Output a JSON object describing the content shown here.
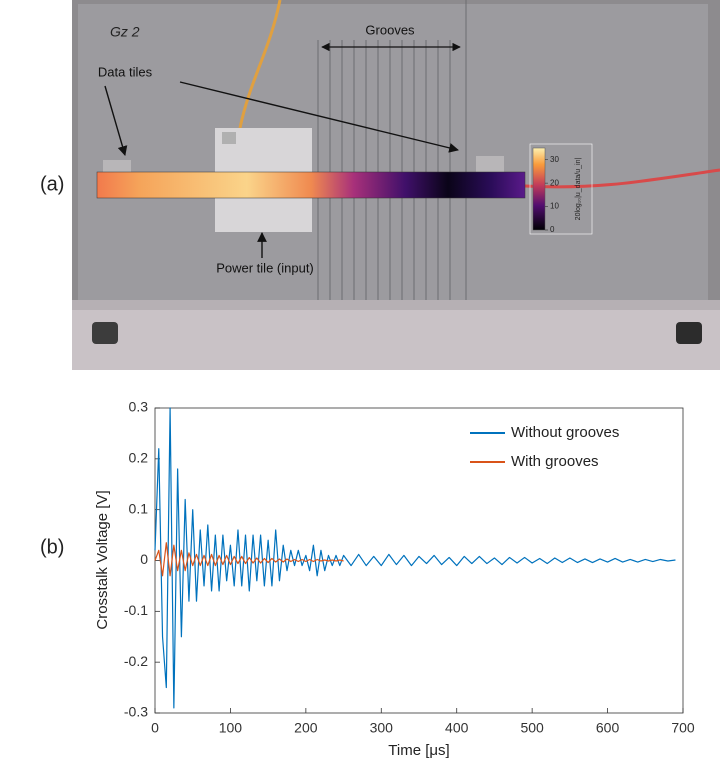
{
  "panel_a": {
    "label": "(a)",
    "plate_mark": "Gz 2",
    "grooves": "Grooves",
    "data_tiles": "Data tiles",
    "power_tile": "Power tile (input)",
    "colorbar": {
      "label": "20log₁₀|u_data/u_in|",
      "lim": [
        0,
        35
      ],
      "ticks": [
        0,
        10,
        20,
        30
      ]
    }
  },
  "chart_data": {
    "type": "line",
    "panel_label": "(b)",
    "xlabel": "Time [μs]",
    "ylabel": "Crosstalk Voltage [V]",
    "xlim": [
      0,
      700
    ],
    "xticks": [
      0,
      100,
      200,
      300,
      400,
      500,
      600,
      700
    ],
    "ylim": [
      -0.3,
      0.3
    ],
    "yticks": [
      -0.3,
      -0.2,
      -0.1,
      0,
      0.1,
      0.2,
      0.3
    ],
    "legend": "upper right",
    "x": [
      0,
      5,
      10,
      15,
      20,
      25,
      30,
      35,
      40,
      45,
      50,
      55,
      60,
      65,
      70,
      75,
      80,
      85,
      90,
      95,
      100,
      105,
      110,
      115,
      120,
      125,
      130,
      135,
      140,
      145,
      150,
      155,
      160,
      165,
      170,
      175,
      180,
      185,
      190,
      195,
      200,
      205,
      210,
      215,
      220,
      225,
      230,
      235,
      240,
      245,
      250,
      260,
      270,
      280,
      290,
      300,
      310,
      320,
      330,
      340,
      350,
      360,
      370,
      380,
      390,
      400,
      410,
      420,
      430,
      440,
      450,
      460,
      470,
      480,
      490,
      500,
      510,
      520,
      530,
      540,
      550,
      560,
      570,
      580,
      590,
      600,
      610,
      620,
      630,
      640,
      650,
      660,
      670,
      680,
      690
    ],
    "series": [
      {
        "name": "Without grooves",
        "color": "#0072bd",
        "values": [
          0.02,
          0.22,
          -0.15,
          -0.25,
          0.3,
          -0.29,
          0.18,
          -0.15,
          0.12,
          -0.08,
          0.1,
          -0.08,
          0.06,
          -0.05,
          0.07,
          -0.06,
          0.05,
          -0.06,
          0.05,
          -0.04,
          0.03,
          -0.05,
          0.06,
          -0.05,
          0.05,
          -0.06,
          0.05,
          -0.04,
          0.05,
          -0.05,
          0.04,
          -0.05,
          0.06,
          -0.04,
          0.03,
          -0.02,
          0.02,
          -0.01,
          0.02,
          -0.01,
          0.01,
          -0.02,
          0.03,
          -0.03,
          0.02,
          -0.02,
          0.01,
          -0.01,
          0.01,
          -0.01,
          0.01,
          -0.01,
          0.012,
          -0.01,
          0.008,
          -0.01,
          0.012,
          -0.008,
          0.01,
          -0.01,
          0.008,
          -0.006,
          0.01,
          -0.008,
          0.006,
          -0.01,
          0.008,
          -0.006,
          0.008,
          -0.006,
          0.005,
          -0.008,
          0.006,
          -0.005,
          0.006,
          -0.005,
          0.004,
          -0.006,
          0.005,
          -0.004,
          0.005,
          -0.004,
          0.003,
          -0.004,
          0.003,
          -0.003,
          0.004,
          -0.003,
          0.002,
          -0.003,
          0.002,
          -0.002,
          0.002,
          -0.001,
          0.001
        ]
      },
      {
        "name": "With grooves",
        "color": "#d95319",
        "values": [
          0,
          0.02,
          -0.03,
          0.035,
          -0.03,
          0.03,
          -0.02,
          0.02,
          -0.02,
          0.015,
          -0.01,
          0.012,
          -0.01,
          0.01,
          -0.01,
          0.012,
          -0.01,
          0.01,
          -0.008,
          0.01,
          -0.008,
          0.008,
          -0.006,
          0.008,
          -0.006,
          0.006,
          -0.005,
          0.005,
          -0.005,
          0.004,
          -0.004,
          0.004,
          -0.003,
          0.003,
          -0.003,
          0.003,
          -0.002,
          0.002,
          -0.002,
          0.002,
          -0.002,
          0.002,
          -0.002,
          0.002,
          -0.001,
          0.001,
          -0.001,
          0.001,
          -0.001,
          0.001,
          -0.001,
          null,
          null,
          null,
          null,
          null,
          null,
          null,
          null,
          null,
          null,
          null,
          null,
          null,
          null,
          null,
          null,
          null,
          null,
          null,
          null,
          null,
          null,
          null,
          null,
          null,
          null,
          null,
          null,
          null,
          null,
          null,
          null,
          null,
          null,
          null,
          null,
          null,
          null,
          null,
          null,
          null,
          null,
          null,
          null
        ]
      }
    ]
  }
}
